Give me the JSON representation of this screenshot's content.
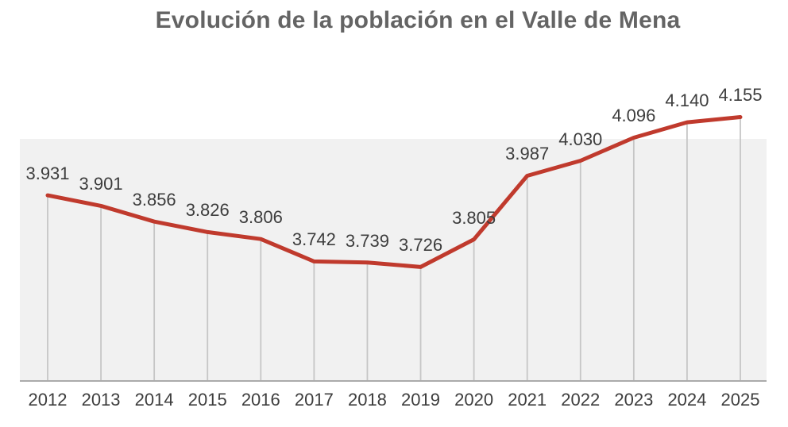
{
  "title": "Evolución de la población en el Valle de Mena",
  "colors": {
    "line": "#c03a2d",
    "plot_background": "#f1f1f1",
    "drop_line": "#c6c6c6",
    "axis_line": "#ababab",
    "title_text": "#646464",
    "label_text": "#3d3d3d"
  },
  "chart_data": {
    "type": "line",
    "title": "Evolución de la población en el Valle de Mena",
    "xlabel": "",
    "ylabel": "",
    "categories": [
      "2012",
      "2013",
      "2014",
      "2015",
      "2016",
      "2017",
      "2018",
      "2019",
      "2020",
      "2021",
      "2022",
      "2023",
      "2024",
      "2025"
    ],
    "values": [
      3931,
      3901,
      3856,
      3826,
      3806,
      3742,
      3739,
      3726,
      3805,
      3987,
      4030,
      4096,
      4140,
      4155
    ],
    "point_labels": [
      "3.931",
      "3.901",
      "3.856",
      "3.826",
      "3.806",
      "3.742",
      "3.739",
      "3.726",
      "3.805",
      "3.987",
      "4.030",
      "4.096",
      "4.140",
      "4.155"
    ],
    "series": [
      {
        "name": "Población",
        "values": [
          3931,
          3901,
          3856,
          3826,
          3806,
          3742,
          3739,
          3726,
          3805,
          3987,
          4030,
          4096,
          4140,
          4155
        ]
      }
    ],
    "ylim": [
      3400,
      4160
    ],
    "grid": "vertical drop lines from each point to x-axis",
    "legend": "none",
    "markers": "none",
    "data_labels": "above points, thousands separated with dot"
  }
}
